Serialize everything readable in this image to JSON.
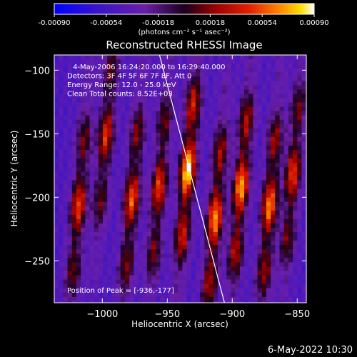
{
  "colorbar": {
    "ticks": [
      "-0.00090",
      "-0.00054",
      "-0.00018",
      "0.00018",
      "0.00054",
      "0.00090"
    ],
    "units": "(photons cm⁻² s⁻¹ asec⁻²)",
    "range": [
      -0.0009,
      0.0009
    ]
  },
  "chart_data": {
    "type": "heatmap",
    "title": "Reconstructed RHESSI Image",
    "xlabel": "Heliocentric X (arcsec)",
    "ylabel": "Heliocentric Y (arcsec)",
    "xlim": [
      -1037,
      -843
    ],
    "ylim": [
      -283,
      -88
    ],
    "x_ticks": [
      {
        "value": -1000,
        "label": "−1000"
      },
      {
        "value": -950,
        "label": "−950"
      },
      {
        "value": -900,
        "label": "−900"
      },
      {
        "value": -850,
        "label": "−850"
      }
    ],
    "y_ticks": [
      {
        "value": -100,
        "label": "−100"
      },
      {
        "value": -150,
        "label": "−150"
      },
      {
        "value": -200,
        "label": "−200"
      },
      {
        "value": -250,
        "label": "−250"
      }
    ],
    "annotations": [
      "4-May-2006 16:24:20.000 to 16:29:40.000",
      "Detectors: 3F 4F 5F 6F 7F 8F, Att 0",
      "Energy Range: 12.0 - 25.0 keV",
      "Clean     Total counts: 8.52E+03"
    ],
    "peak_label": "Position of Peak = [-936,-177]",
    "peak": [
      -936,
      -177
    ],
    "limb_line": [
      [
        -956,
        -88
      ],
      [
        -906,
        -283
      ]
    ],
    "stripes": [
      {
        "x": -1020,
        "y": -205,
        "amp": 0.0005
      },
      {
        "x": -999,
        "y": -150,
        "amp": 0.00045
      },
      {
        "x": -979,
        "y": -200,
        "amp": 0.00055
      },
      {
        "x": -958,
        "y": -190,
        "amp": 0.0005
      },
      {
        "x": -936,
        "y": -177,
        "amp": 0.0009
      },
      {
        "x": -915,
        "y": -215,
        "amp": 0.0007
      },
      {
        "x": -895,
        "y": -190,
        "amp": 0.00075
      },
      {
        "x": -873,
        "y": -205,
        "amp": 0.00065
      },
      {
        "x": -855,
        "y": -180,
        "amp": 0.0005
      }
    ]
  },
  "footer": {
    "date": "6-May-2022 10:30"
  }
}
